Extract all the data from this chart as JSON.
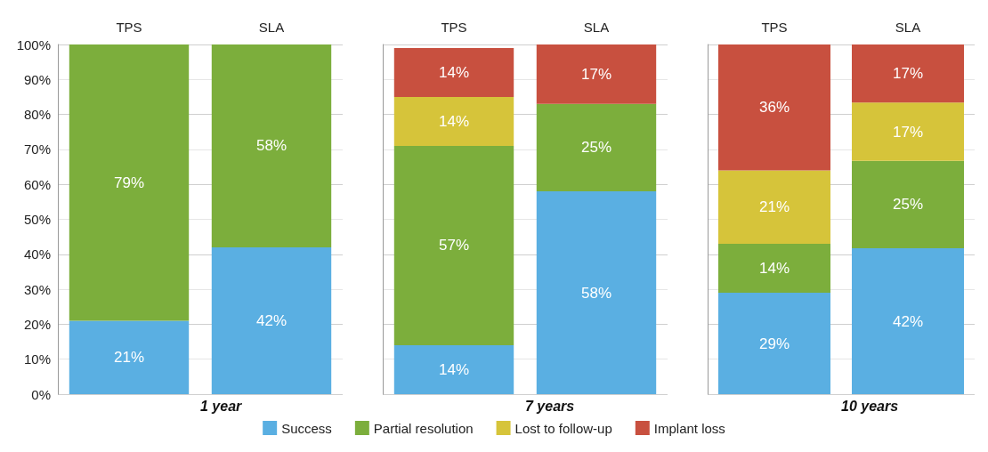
{
  "chart_data": [
    {
      "type": "bar",
      "stacked": true,
      "xlabel": "1 year",
      "categories": [
        "TPS",
        "SLA"
      ],
      "ylim": [
        0,
        100
      ],
      "yticks": [
        {
          "value": 0,
          "label": "0%"
        },
        {
          "value": 10,
          "label": "10%"
        },
        {
          "value": 20,
          "label": "20%"
        },
        {
          "value": 30,
          "label": "30%"
        },
        {
          "value": 40,
          "label": "40%"
        },
        {
          "value": 50,
          "label": "50%"
        },
        {
          "value": 60,
          "label": "60%"
        },
        {
          "value": 70,
          "label": "70%"
        },
        {
          "value": 80,
          "label": "80%"
        },
        {
          "value": 90,
          "label": "90%"
        },
        {
          "value": 100,
          "label": "100%"
        }
      ],
      "grid": "y",
      "legend": false,
      "series": [
        {
          "color": "#5aafe2",
          "values": [
            21,
            42
          ],
          "value_labels": [
            "21%",
            "42%"
          ]
        },
        {
          "color": "#7cae3c",
          "values": [
            79,
            58
          ],
          "value_labels": [
            "79%",
            "58%"
          ]
        }
      ]
    },
    {
      "type": "bar",
      "stacked": true,
      "xlabel": "7 years",
      "categories": [
        "TPS",
        "SLA"
      ],
      "ylim": [
        0,
        100
      ],
      "yticks": [
        0,
        10,
        20,
        30,
        40,
        50,
        60,
        70,
        80,
        90,
        100
      ],
      "tick_labels": "x",
      "grid": "y",
      "legend": "bottom",
      "series": [
        {
          "name": "Success",
          "color": "#5aafe2",
          "values": [
            14,
            58
          ],
          "value_labels": [
            "14%",
            "58%"
          ]
        },
        {
          "name": "Partial resolution",
          "color": "#7cae3c",
          "values": [
            57,
            25
          ],
          "value_labels": [
            "57%",
            "25%"
          ]
        },
        {
          "name": "Lost to follow-up",
          "color": "#d6c43a",
          "values": [
            14,
            null
          ],
          "value_labels": [
            "14%",
            null
          ]
        },
        {
          "name": "Implant loss",
          "color": "#c8503f",
          "values": [
            14,
            17
          ],
          "value_labels": [
            "14%",
            "17%"
          ]
        }
      ]
    },
    {
      "type": "bar",
      "stacked": true,
      "xlabel": "10 years",
      "categories": [
        "TPS",
        "SLA"
      ],
      "ylim": [
        0,
        100
      ],
      "yticks": [
        0,
        10,
        20,
        30,
        40,
        50,
        60,
        70,
        80,
        90,
        100
      ],
      "tick_labels": "x",
      "grid": "y",
      "legend": false,
      "series": [
        {
          "color": "#5aafe2",
          "values": [
            29,
            41.7
          ],
          "value_labels": [
            "29%",
            "42%"
          ]
        },
        {
          "color": "#7cae3c",
          "values": [
            14,
            25
          ],
          "value_labels": [
            "14%",
            "25%"
          ]
        },
        {
          "color": "#d6c43a",
          "values": [
            21,
            16.7
          ],
          "value_labels": [
            "21%",
            "17%"
          ]
        },
        {
          "color": "#c8503f",
          "values": [
            36,
            16.6
          ],
          "value_labels": [
            "36%",
            "17%"
          ]
        }
      ]
    }
  ]
}
